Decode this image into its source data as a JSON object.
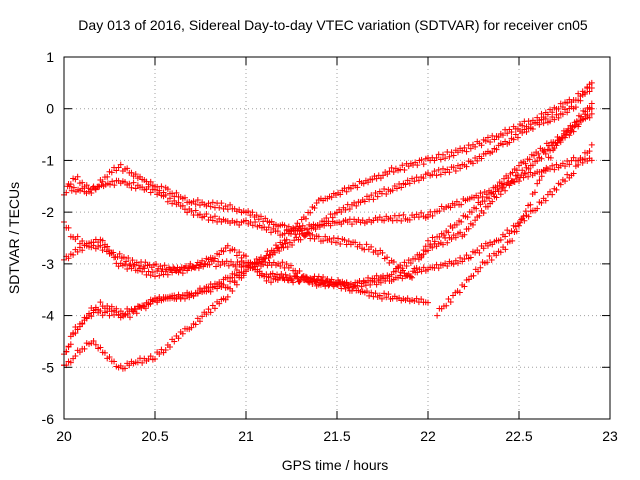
{
  "chart_data": {
    "type": "scatter",
    "title": "Day 013 of 2016, Sidereal Day-to-day VTEC variation (SDTVAR) for receiver cn05",
    "xlabel": "GPS time / hours",
    "ylabel": "SDTVAR / TECUs",
    "xlim": [
      20,
      23
    ],
    "ylim": [
      -6,
      1
    ],
    "xticks": [
      "20",
      "20.5",
      "21",
      "21.5",
      "22",
      "22.5",
      "23"
    ],
    "yticks": [
      "1",
      "0",
      "-1",
      "-2",
      "-3",
      "-4",
      "-5",
      "-6"
    ],
    "grid": true,
    "marker": "+",
    "color": "#ff0000",
    "series": [
      {
        "x": [
          20.02,
          20.1,
          20.3,
          20.5,
          20.7,
          20.9,
          21.0,
          21.1,
          21.2,
          21.3,
          21.5,
          21.7,
          21.9,
          22.0
        ],
        "y": [
          -1.5,
          -1.6,
          -1.4,
          -1.6,
          -2.0,
          -2.2,
          -2.2,
          -2.3,
          -2.4,
          -2.3,
          -2.2,
          -2.15,
          -2.1,
          -2.05
        ]
      },
      {
        "x": [
          22.0,
          22.1,
          22.3,
          22.5,
          22.6,
          22.8,
          22.9
        ],
        "y": [
          -2.05,
          -1.9,
          -1.65,
          -1.35,
          -1.25,
          -1.0,
          -1.0
        ]
      },
      {
        "x": [
          20.0,
          20.05,
          20.15,
          20.3,
          20.5,
          20.7,
          20.9,
          21.0,
          21.2,
          21.4,
          21.6,
          21.75,
          21.9,
          22.0,
          22.1,
          22.3,
          22.5,
          22.7,
          22.9
        ],
        "y": [
          -1.7,
          -1.3,
          -1.6,
          -1.1,
          -1.5,
          -1.8,
          -1.9,
          -2.0,
          -2.3,
          -2.5,
          -2.6,
          -2.8,
          -3.3,
          -2.6,
          -2.4,
          -1.8,
          -1.1,
          -0.6,
          -0.1
        ]
      },
      {
        "x": [
          20.0,
          20.05,
          20.2,
          20.4,
          20.6,
          20.8,
          21.0,
          21.1,
          21.3,
          21.5,
          21.7,
          21.9,
          22.0
        ],
        "y": [
          -2.2,
          -2.5,
          -2.7,
          -3.0,
          -3.1,
          -3.0,
          -3.0,
          -3.2,
          -3.3,
          -3.4,
          -3.6,
          -3.7,
          -3.75
        ]
      },
      {
        "x": [
          22.05,
          22.15,
          22.3,
          22.45,
          22.55,
          22.7,
          22.9
        ],
        "y": [
          -3.95,
          -3.6,
          -3.0,
          -2.6,
          -1.9,
          -0.7,
          0.1
        ]
      },
      {
        "x": [
          20.0,
          20.05,
          20.2,
          20.3,
          20.5,
          20.7,
          20.9,
          21.0,
          21.1,
          21.2,
          21.4,
          21.6,
          21.8,
          22.0,
          22.2,
          22.4,
          22.6,
          22.8,
          22.9
        ],
        "y": [
          -2.9,
          -2.8,
          -2.5,
          -3.0,
          -3.2,
          -3.1,
          -2.7,
          -2.9,
          -3.3,
          -3.3,
          -3.3,
          -3.4,
          -3.3,
          -3.1,
          -2.9,
          -2.5,
          -1.9,
          -1.2,
          -0.7
        ]
      },
      {
        "x": [
          20.0,
          20.05,
          20.15,
          20.3,
          20.5,
          20.7,
          20.9,
          21.0,
          21.2,
          21.4,
          21.6,
          21.8,
          22.0,
          22.2,
          22.4,
          22.6,
          22.8,
          22.9
        ],
        "y": [
          -5.0,
          -4.8,
          -4.5,
          -5.0,
          -4.8,
          -4.2,
          -3.6,
          -3.1,
          -2.6,
          -1.8,
          -1.5,
          -1.2,
          -1.0,
          -0.8,
          -0.5,
          -0.2,
          0.2,
          0.4
        ]
      },
      {
        "x": [
          20.0,
          20.05,
          20.15,
          20.3,
          20.5,
          20.7,
          20.9,
          21.0,
          21.1,
          21.3,
          21.5,
          21.7,
          21.9,
          22.0,
          22.2,
          22.4,
          22.6,
          22.8,
          22.9
        ],
        "y": [
          -4.8,
          -4.4,
          -3.9,
          -4.0,
          -3.7,
          -3.6,
          -3.4,
          -3.1,
          -2.9,
          -2.5,
          -2.0,
          -1.7,
          -1.4,
          -1.3,
          -1.1,
          -0.7,
          -0.3,
          0.0,
          0.5
        ]
      },
      {
        "x": [
          20.0,
          20.05,
          20.2,
          20.35,
          20.5,
          20.7,
          20.9,
          21.0,
          21.2,
          21.4,
          21.6,
          21.8,
          22.0,
          22.2,
          22.4,
          22.6,
          22.8,
          22.9
        ],
        "y": [
          -4.9,
          -4.3,
          -3.8,
          -4.0,
          -3.7,
          -3.6,
          -3.3,
          -3.0,
          -3.0,
          -3.4,
          -3.4,
          -3.2,
          -2.7,
          -2.4,
          -1.6,
          -1.0,
          -0.4,
          0.0
        ]
      }
    ]
  }
}
